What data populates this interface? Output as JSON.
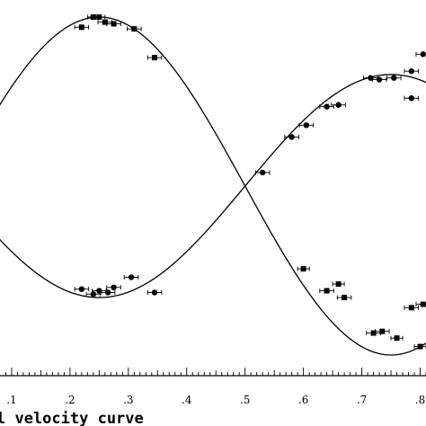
{
  "chart_data": {
    "type": "scatter",
    "title": "",
    "caption": "l velocity curve",
    "xlabel": "",
    "ylabel": "",
    "xlim": [
      0.0,
      0.81
    ],
    "ylim": [
      -1.15,
      1.1
    ],
    "grid": false,
    "x_tick_labels": [
      {
        "x": 0.1,
        "label": ".1"
      },
      {
        "x": 0.2,
        "label": ".2"
      },
      {
        "x": 0.3,
        "label": ".3"
      },
      {
        "x": 0.4,
        "label": ".4"
      },
      {
        "x": 0.5,
        "label": ".5"
      },
      {
        "x": 0.6,
        "label": ".6"
      },
      {
        "x": 0.7,
        "label": ".7"
      },
      {
        "x": 0.8,
        "label": ".8"
      }
    ],
    "series": [
      {
        "marker": "square",
        "points": [
          {
            "x": 0.22,
            "y": 0.94,
            "xerr": 0.012
          },
          {
            "x": 0.24,
            "y": 1.0,
            "xerr": 0.01
          },
          {
            "x": 0.25,
            "y": 1.0,
            "xerr": 0.01
          },
          {
            "x": 0.26,
            "y": 0.97,
            "xerr": 0.012
          },
          {
            "x": 0.275,
            "y": 0.96,
            "xerr": 0.012
          },
          {
            "x": 0.31,
            "y": 0.93,
            "xerr": 0.012
          },
          {
            "x": 0.345,
            "y": 0.76,
            "xerr": 0.012
          },
          {
            "x": 0.6,
            "y": -0.49,
            "xerr": 0.01
          },
          {
            "x": 0.64,
            "y": -0.62,
            "xerr": 0.012
          },
          {
            "x": 0.66,
            "y": -0.58,
            "xerr": 0.01
          },
          {
            "x": 0.67,
            "y": -0.66,
            "xerr": 0.012
          },
          {
            "x": 0.72,
            "y": -0.87,
            "xerr": 0.012
          },
          {
            "x": 0.735,
            "y": -0.86,
            "xerr": 0.012
          },
          {
            "x": 0.76,
            "y": -0.9,
            "xerr": 0.01
          },
          {
            "x": 0.785,
            "y": -0.72,
            "xerr": 0.012
          },
          {
            "x": 0.8,
            "y": -0.95,
            "xerr": 0.01
          },
          {
            "x": 0.805,
            "y": -0.7,
            "xerr": 0.012
          }
        ]
      },
      {
        "marker": "circle",
        "points": [
          {
            "x": 0.22,
            "y": -0.61,
            "xerr": 0.012
          },
          {
            "x": 0.24,
            "y": -0.64,
            "xerr": 0.012
          },
          {
            "x": 0.25,
            "y": -0.62,
            "xerr": 0.012
          },
          {
            "x": 0.265,
            "y": -0.63,
            "xerr": 0.012
          },
          {
            "x": 0.275,
            "y": -0.6,
            "xerr": 0.012
          },
          {
            "x": 0.305,
            "y": -0.54,
            "xerr": 0.012
          },
          {
            "x": 0.345,
            "y": -0.63,
            "xerr": 0.012
          },
          {
            "x": 0.53,
            "y": 0.08,
            "xerr": 0.012
          },
          {
            "x": 0.58,
            "y": 0.29,
            "xerr": 0.012
          },
          {
            "x": 0.605,
            "y": 0.36,
            "xerr": 0.012
          },
          {
            "x": 0.64,
            "y": 0.47,
            "xerr": 0.012
          },
          {
            "x": 0.66,
            "y": 0.48,
            "xerr": 0.012
          },
          {
            "x": 0.715,
            "y": 0.64,
            "xerr": 0.012
          },
          {
            "x": 0.73,
            "y": 0.63,
            "xerr": 0.012
          },
          {
            "x": 0.755,
            "y": 0.64,
            "xerr": 0.012
          },
          {
            "x": 0.785,
            "y": 0.68,
            "xerr": 0.012
          },
          {
            "x": 0.785,
            "y": 0.52,
            "xerr": 0.012
          },
          {
            "x": 0.805,
            "y": 0.78,
            "xerr": 0.012
          }
        ]
      }
    ],
    "curves": [
      {
        "kind": "sine",
        "amplitude": 1.0,
        "offset": 0.0,
        "phase_zero": 0.0
      },
      {
        "kind": "sine",
        "amplitude": -0.66,
        "offset": 0.0,
        "phase_zero": 0.0
      }
    ]
  }
}
